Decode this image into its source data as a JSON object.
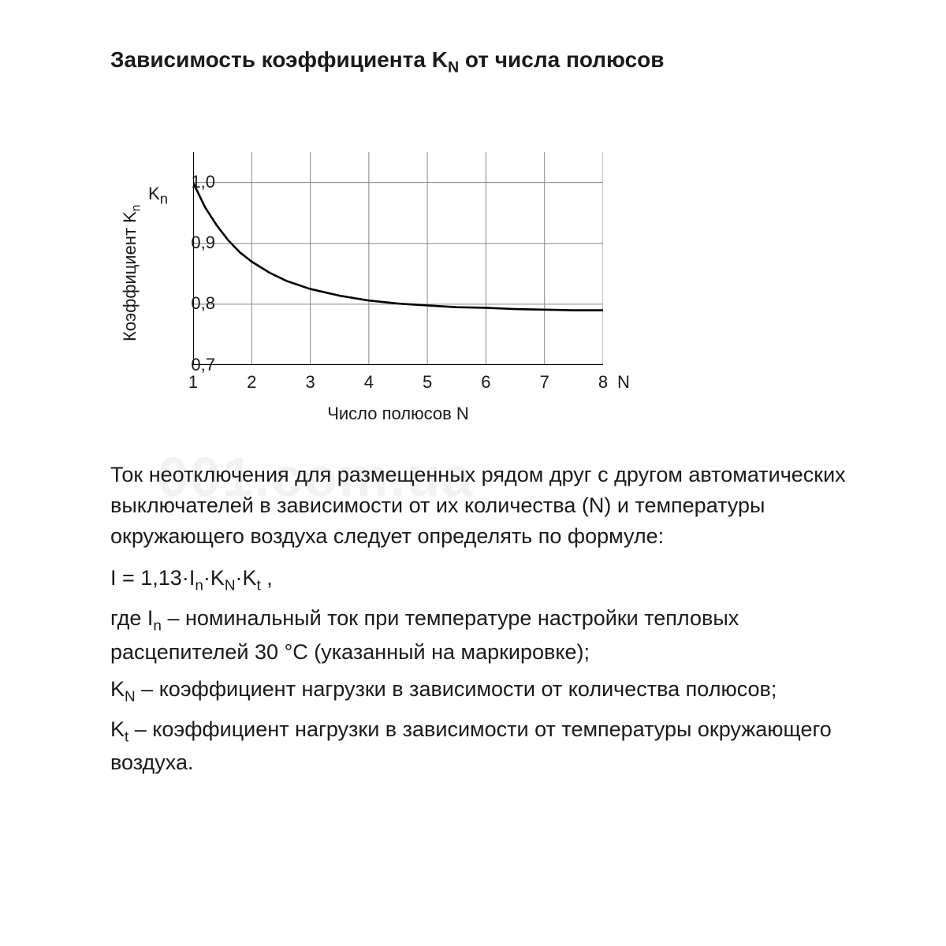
{
  "title_html": "Зависимость коэффициента K<sub>N</sub> от числа полюсов",
  "watermark": "001.com.ua",
  "chart": {
    "type": "line",
    "y_axis_top_label_html": "K<sub>n</sub>",
    "y_label_html": "Коэффициент K<sub>n</sub>",
    "x_label": "Число полюсов N",
    "x_axis_end_label": "N",
    "xlim": [
      1,
      8
    ],
    "ylim": [
      0.7,
      1.05
    ],
    "y_ticks": [
      1.0,
      0.9,
      0.8,
      0.7
    ],
    "y_tick_labels": [
      "1,0",
      "0,9",
      "0,8",
      "0,7"
    ],
    "x_ticks": [
      1,
      2,
      3,
      4,
      5,
      6,
      7,
      8
    ],
    "x_tick_labels": [
      "1",
      "2",
      "3",
      "4",
      "5",
      "6",
      "7",
      "8"
    ],
    "gridlines_x": [
      1,
      2,
      3,
      4,
      5,
      6,
      7,
      8
    ],
    "gridlines_y": [
      1.0,
      0.9,
      0.8,
      0.7
    ],
    "grid_color": "#888888",
    "grid_stroke_width": 1,
    "axis_stroke_width": 2.2,
    "line_color": "#000000",
    "line_stroke_width": 2.6,
    "background_color": "#ffffff",
    "label_fontsize": 22,
    "data": [
      {
        "x": 1.0,
        "y": 1.0
      },
      {
        "x": 1.2,
        "y": 0.96
      },
      {
        "x": 1.4,
        "y": 0.93
      },
      {
        "x": 1.6,
        "y": 0.905
      },
      {
        "x": 1.8,
        "y": 0.885
      },
      {
        "x": 2.0,
        "y": 0.87
      },
      {
        "x": 2.3,
        "y": 0.852
      },
      {
        "x": 2.6,
        "y": 0.838
      },
      {
        "x": 3.0,
        "y": 0.825
      },
      {
        "x": 3.5,
        "y": 0.814
      },
      {
        "x": 4.0,
        "y": 0.806
      },
      {
        "x": 4.5,
        "y": 0.801
      },
      {
        "x": 5.0,
        "y": 0.798
      },
      {
        "x": 5.5,
        "y": 0.795
      },
      {
        "x": 6.0,
        "y": 0.794
      },
      {
        "x": 6.5,
        "y": 0.792
      },
      {
        "x": 7.0,
        "y": 0.791
      },
      {
        "x": 7.5,
        "y": 0.79
      },
      {
        "x": 8.0,
        "y": 0.79
      }
    ]
  },
  "paragraph1": "Ток неотключения для размещенных рядом друг с другом автоматических выключателей в зависимости от их количества (N) и температуры окружающего воздуха следует определять по формуле:",
  "formula_html": "I = 1,13·I<sub>n</sub>·K<sub>N</sub>·K<sub>t</sub> ,",
  "paragraph2_html": "где I<sub>n</sub> – номинальный ток при температуре настройки тепловых расцепителей 30 °С (указанный на маркировке);",
  "paragraph3_html": "K<sub>N</sub> – коэффициент нагрузки в зависимости от количества полюсов;",
  "paragraph4_html": "K<sub>t</sub> – коэффициент нагрузки в зависимости от температуры окружающего воздуха."
}
